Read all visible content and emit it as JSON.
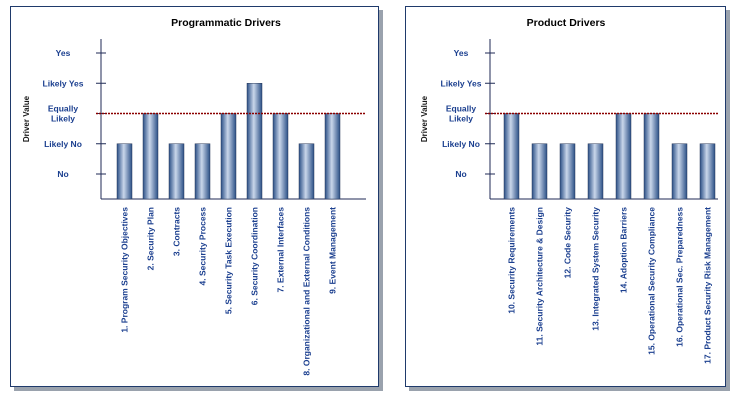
{
  "chart_data": [
    {
      "type": "bar",
      "title": "Programmatic Drivers",
      "ylabel": "Driver Value",
      "y_levels": [
        "No",
        "Likely No",
        "Equally Likely",
        "Likely Yes",
        "Yes"
      ],
      "y_level_lines": [
        [
          "No"
        ],
        [
          "Likely No"
        ],
        [
          "Equally",
          "Likely"
        ],
        [
          "Likely Yes"
        ],
        [
          "Yes"
        ]
      ],
      "ylim": [
        0,
        4
      ],
      "reference_line": 2,
      "categories": [
        "1. Program Security Objectives",
        "2. Security Plan",
        "3. Contracts",
        "4. Security Process",
        "5. Security Task Execution",
        "6. Security Coordination",
        "7. External Interfaces",
        "8. Organizational and External Conditions",
        "9. Event Management"
      ],
      "values": [
        1,
        2,
        1,
        1,
        2,
        3,
        2,
        1,
        2
      ]
    },
    {
      "type": "bar",
      "title": "Product Drivers",
      "ylabel": "Driver Value",
      "y_levels": [
        "No",
        "Likely No",
        "Equally Likely",
        "Likely Yes",
        "Yes"
      ],
      "y_level_lines": [
        [
          "No"
        ],
        [
          "Likely No"
        ],
        [
          "Equally",
          "Likely"
        ],
        [
          "Likely Yes"
        ],
        [
          "Yes"
        ]
      ],
      "ylim": [
        0,
        4
      ],
      "reference_line": 2,
      "categories": [
        "10. Security Requirements",
        "11. Security Architecture  & Design",
        "12. Code Security",
        "13. Integrated System  Security",
        "14. Adoption Barriers",
        "15. Operational Security Compliance",
        "16. Operational Sec. Preparedness",
        "17. Product Security Risk Management"
      ],
      "values": [
        2,
        1,
        1,
        1,
        2,
        2,
        1,
        1
      ]
    }
  ],
  "colors": {
    "bar_dark": "#2a4f86",
    "bar_light": "#c9d6ea",
    "reference_line": "#8b0000",
    "label": "#1b3f8f",
    "border": "#1f3a6b"
  }
}
